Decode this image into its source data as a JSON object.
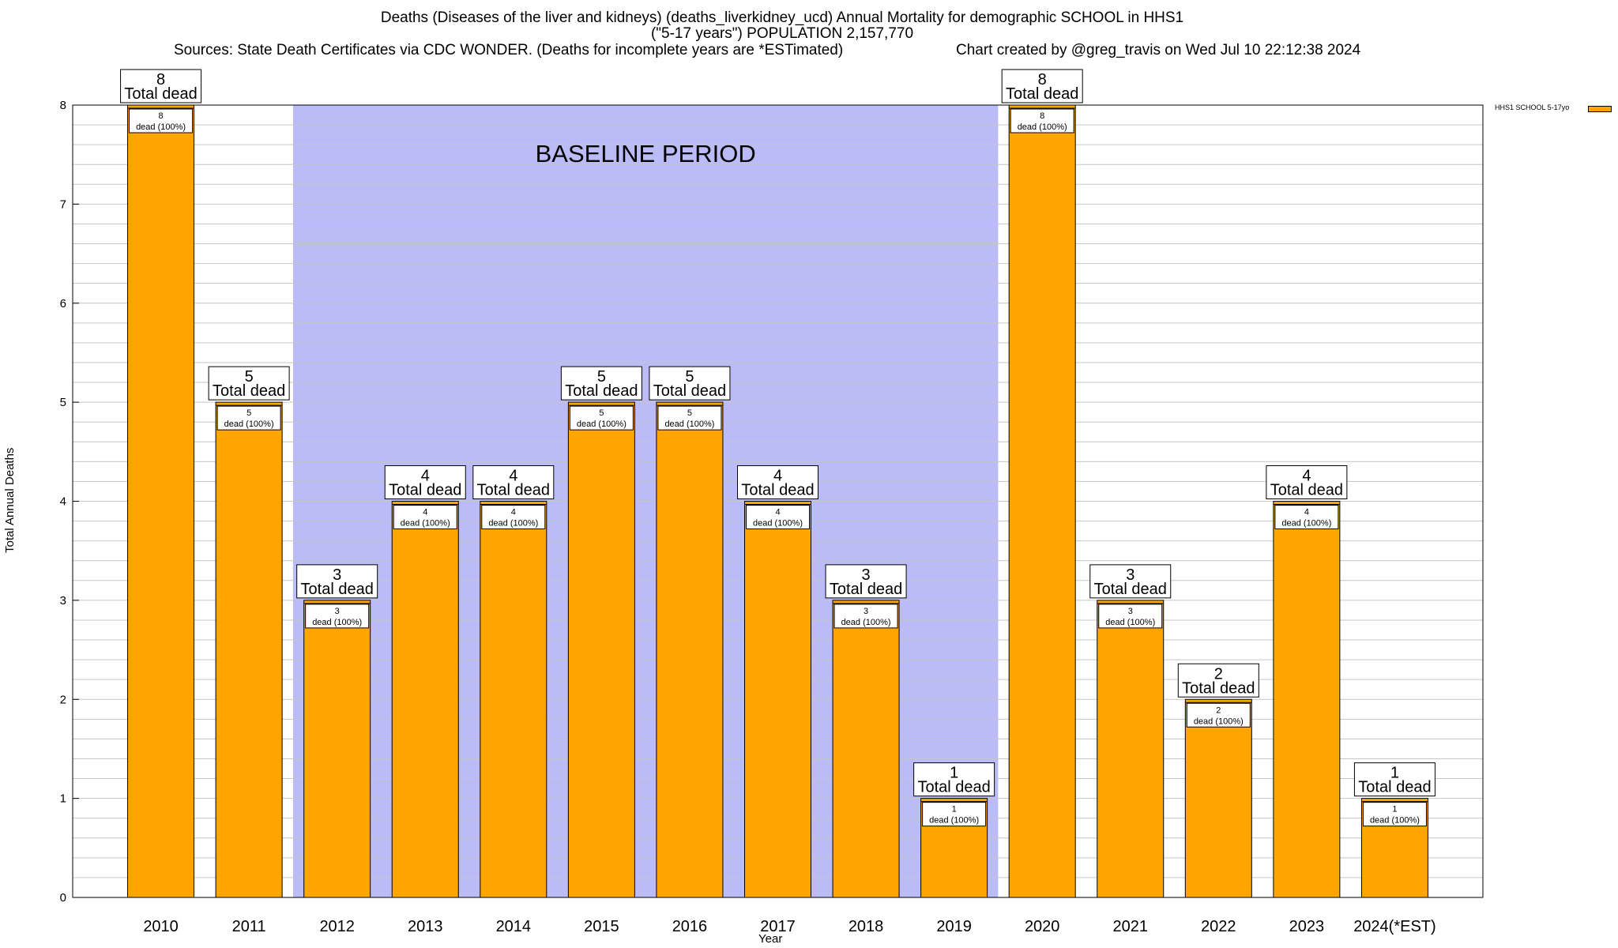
{
  "title": {
    "line1": "Deaths (Diseases of the liver and kidneys) (deaths_liverkidney_ucd) Annual Mortality for demographic SCHOOL in HHS1",
    "line2": "(\"5-17 years\") POPULATION 2,157,770",
    "sources": "Sources: State Death Certificates via CDC WONDER. (Deaths for incomplete years are *ESTimated)",
    "credit": "Chart created by @greg_travis on Wed Jul 10 22:12:38 2024"
  },
  "chart_data": {
    "type": "bar",
    "categories": [
      "2010",
      "2011",
      "2012",
      "2013",
      "2014",
      "2015",
      "2016",
      "2017",
      "2018",
      "2019",
      "2020",
      "2021",
      "2022",
      "2023",
      "2024(*EST)"
    ],
    "series": [
      {
        "name": "HHS1 SCHOOL 5-17yo",
        "values": [
          8,
          5,
          3,
          4,
          4,
          5,
          5,
          4,
          3,
          1,
          8,
          3,
          2,
          4,
          1
        ],
        "color": "#ffa500"
      }
    ],
    "xlabel": "Year",
    "ylabel": "Total Annual Deaths",
    "ylim": [
      0,
      8
    ],
    "yticks": [
      0,
      1,
      2,
      3,
      4,
      5,
      6,
      7,
      8
    ],
    "grid": true,
    "legend_position": "top-right",
    "total_label": "Total dead",
    "segment_label_suffix": "dead (100%)",
    "baseline": {
      "label": "BASELINE PERIOD",
      "from": "2012",
      "to": "2019",
      "color": "#bbbbf8"
    }
  }
}
